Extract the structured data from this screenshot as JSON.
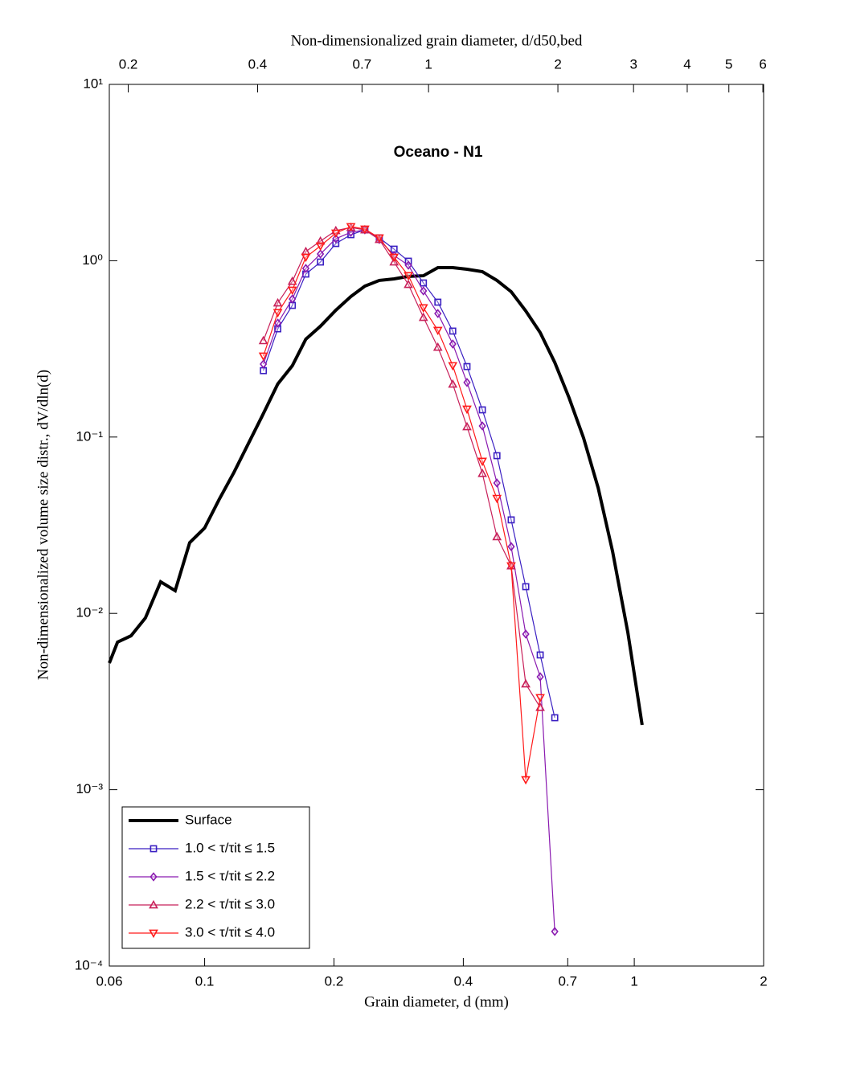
{
  "chart_data": {
    "type": "line",
    "title": "Oceano - N1",
    "xlabel": "Grain diameter, d (mm)",
    "x2label": "Non-dimensionalized grain diameter, d/d50,bed",
    "ylabel": "Non-dimensionalized volume size distr., dV/dln(d)",
    "xscale": "log",
    "yscale": "log",
    "legend": "lower left",
    "xlim": [
      0.06,
      2
    ],
    "xticks": [
      0.06,
      0.1,
      0.2,
      0.4,
      0.7,
      1,
      2
    ],
    "x2lim": [
      0.1807,
      6.024
    ],
    "x2ticks": [
      0.2,
      0.4,
      0.7,
      1,
      2,
      3,
      4,
      5,
      6
    ],
    "ylim": [
      0.0001,
      10
    ],
    "yticks": [
      {
        "value": 10,
        "label": "10¹"
      },
      {
        "value": 1,
        "label": "10⁰"
      },
      {
        "value": 0.1,
        "label": "10⁻¹"
      },
      {
        "value": 0.01,
        "label": "10⁻²"
      },
      {
        "value": 0.001,
        "label": "10⁻³"
      },
      {
        "value": 0.0001,
        "label": "10⁻⁴"
      }
    ],
    "series": [
      {
        "name": "Surface",
        "color": "#000000",
        "marker": "none",
        "x": [
          0.06,
          0.0627,
          0.0674,
          0.0728,
          0.079,
          0.0854,
          0.0923,
          0.1,
          0.108,
          0.117,
          0.136,
          0.148,
          0.16,
          0.172,
          0.186,
          0.202,
          0.219,
          0.236,
          0.255,
          0.276,
          0.298,
          0.323,
          0.349,
          0.378,
          0.408,
          0.443,
          0.479,
          0.517,
          0.559,
          0.604,
          0.653,
          0.705,
          0.762,
          0.824,
          0.89,
          0.966,
          1.043
        ],
        "values": [
          0.00523,
          0.00687,
          0.00746,
          0.00942,
          0.0151,
          0.01345,
          0.0252,
          0.0305,
          0.0441,
          0.063,
          0.131,
          0.2,
          0.254,
          0.359,
          0.425,
          0.524,
          0.627,
          0.718,
          0.773,
          0.789,
          0.815,
          0.822,
          0.914,
          0.914,
          0.895,
          0.867,
          0.773,
          0.667,
          0.519,
          0.391,
          0.265,
          0.167,
          0.0988,
          0.0515,
          0.0225,
          0.0078,
          0.00233
        ]
      },
      {
        "name": "1.0 < τ/τit ≤ 1.5",
        "color": "#3a1fc2",
        "marker": "square",
        "x": [
          0.137,
          0.148,
          0.16,
          0.172,
          0.186,
          0.202,
          0.219,
          0.236,
          0.255,
          0.276,
          0.298,
          0.323,
          0.349,
          0.378,
          0.408,
          0.443,
          0.479,
          0.517,
          0.559,
          0.604,
          0.653
        ],
        "values": [
          0.238,
          0.411,
          0.558,
          0.84,
          0.983,
          1.252,
          1.405,
          1.496,
          1.347,
          1.163,
          0.994,
          0.748,
          0.582,
          0.399,
          0.251,
          0.1426,
          0.0784,
          0.0339,
          0.01417,
          0.00581,
          0.00256
        ]
      },
      {
        "name": "1.5 < τ/τit ≤ 2.2",
        "color": "#8a1ab0",
        "marker": "diamond",
        "x": [
          0.137,
          0.148,
          0.16,
          0.172,
          0.186,
          0.202,
          0.219,
          0.236,
          0.255,
          0.276,
          0.298,
          0.323,
          0.349,
          0.378,
          0.408,
          0.443,
          0.479,
          0.517,
          0.559,
          0.604,
          0.653
        ],
        "values": [
          0.2594,
          0.443,
          0.607,
          0.904,
          1.092,
          1.333,
          1.45,
          1.496,
          1.319,
          1.07,
          0.943,
          0.674,
          0.502,
          0.337,
          0.204,
          0.1156,
          0.0549,
          0.0239,
          0.00763,
          0.00437,
          0.000157
        ]
      },
      {
        "name": "2.2 < τ/τit ≤ 3.0",
        "color": "#c8205a",
        "marker": "triangle-up",
        "x": [
          0.137,
          0.148,
          0.16,
          0.172,
          0.186,
          0.202,
          0.219,
          0.236,
          0.255,
          0.276,
          0.298,
          0.323,
          0.349,
          0.378,
          0.408,
          0.443,
          0.479,
          0.517,
          0.559,
          0.604
        ],
        "values": [
          0.352,
          0.576,
          0.764,
          1.127,
          1.292,
          1.481,
          1.544,
          1.496,
          1.319,
          0.983,
          0.733,
          0.477,
          0.323,
          0.1995,
          0.1144,
          0.0622,
          0.0272,
          0.0186,
          0.00398,
          0.00293
        ]
      },
      {
        "name": "3.0 < τ/τit ≤ 4.0",
        "color": "#ff1a1a",
        "marker": "triangle-down",
        "x": [
          0.137,
          0.148,
          0.16,
          0.172,
          0.186,
          0.202,
          0.219,
          0.236,
          0.255,
          0.276,
          0.298,
          0.323,
          0.349,
          0.378,
          0.408,
          0.443,
          0.479,
          0.517,
          0.559,
          0.604
        ],
        "values": [
          0.288,
          0.508,
          0.681,
          1.047,
          1.213,
          1.435,
          1.561,
          1.512,
          1.347,
          1.047,
          0.823,
          0.541,
          0.403,
          0.254,
          0.144,
          0.0729,
          0.0449,
          0.0186,
          0.00114,
          0.00333
        ]
      }
    ]
  }
}
